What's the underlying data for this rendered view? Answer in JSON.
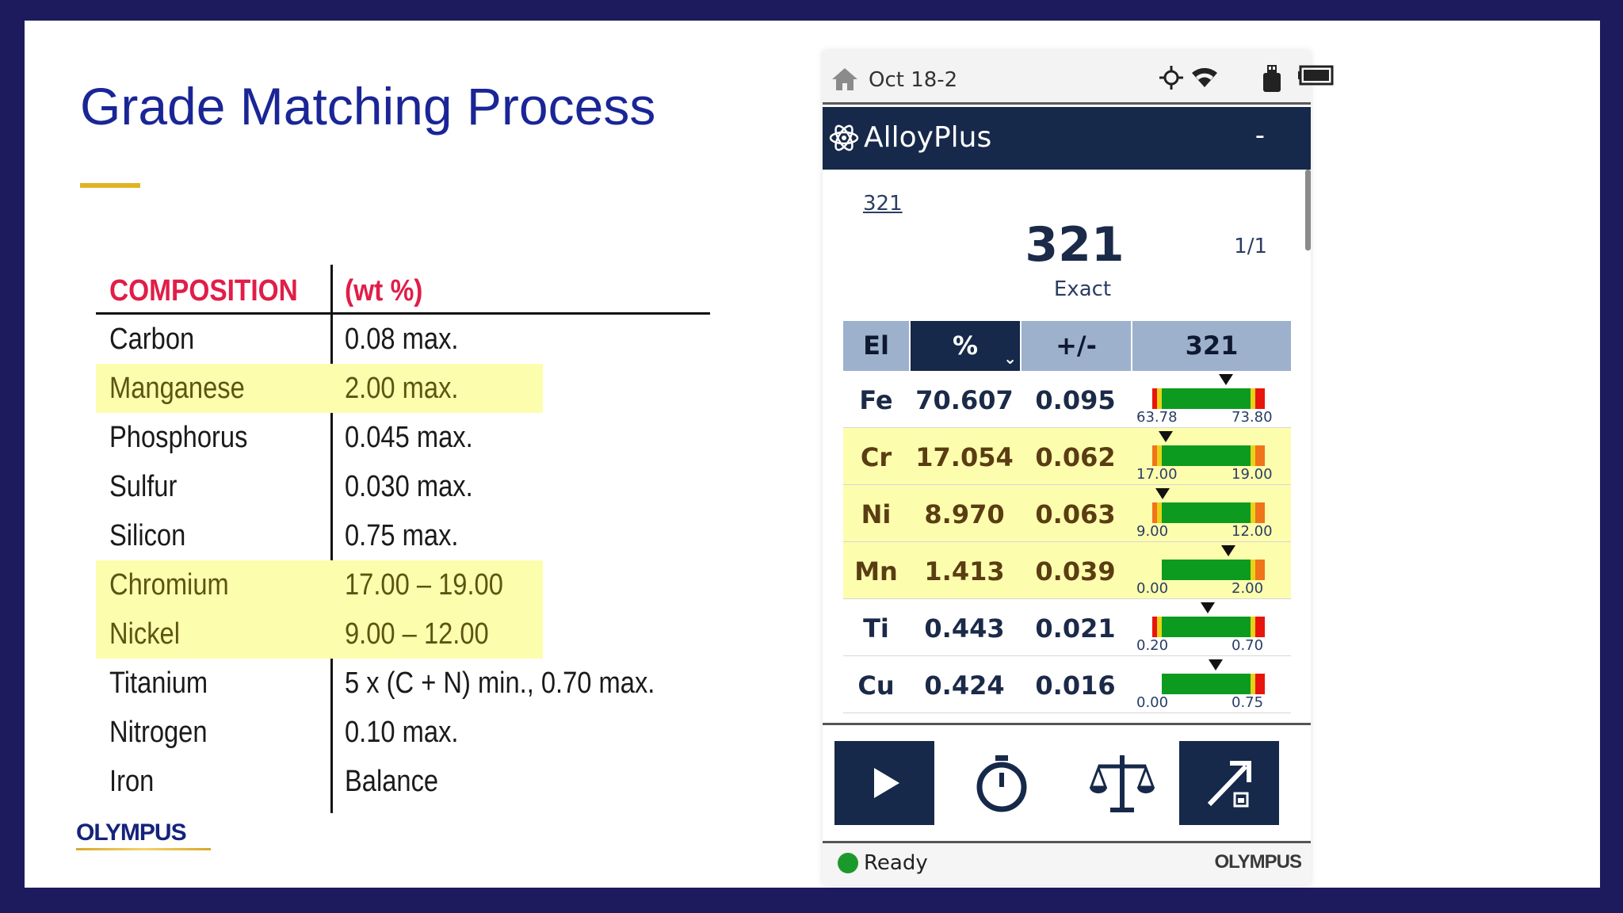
{
  "slide": {
    "title": "Grade Matching Process",
    "colors": {
      "title": "#1a2596",
      "accent_rule": "#e1b324",
      "header_red": "#e11d48",
      "highlight": "#fdfdae"
    },
    "composition_table": {
      "col_element_header": "COMPOSITION",
      "col_value_header": "(wt %)",
      "rows": [
        {
          "element": "Carbon",
          "value": "0.08 max."
        },
        {
          "element": "Manganese",
          "value": "2.00 max."
        },
        {
          "element": "Phosphorus",
          "value": "0.045 max."
        },
        {
          "element": "Sulfur",
          "value": "0.030 max."
        },
        {
          "element": "Silicon",
          "value": "0.75 max."
        },
        {
          "element": "Chromium",
          "value": "17.00 – 19.00"
        },
        {
          "element": "Nickel",
          "value": "9.00 – 12.00"
        },
        {
          "element": "Titanium",
          "value": "5 x (C + N) min., 0.70 max."
        },
        {
          "element": "Nitrogen",
          "value": "0.10 max."
        },
        {
          "element": "Iron",
          "value": "Balance"
        }
      ],
      "highlighted_rows": [
        "Manganese",
        "Chromium",
        "Nickel"
      ]
    },
    "logo_text": "OLYMPUS"
  },
  "device": {
    "status_bar": {
      "date": "Oct 18-2",
      "icons": [
        "home-icon",
        "gps-icon",
        "wifi-icon",
        "usb-icon",
        "battery-icon"
      ]
    },
    "app_bar": {
      "app_name": "AlloyPlus",
      "menu_label": "-",
      "icon": "atom-icon"
    },
    "result": {
      "grade_link": "321",
      "grade": "321",
      "match_count": "1/1",
      "match_quality": "Exact"
    },
    "table": {
      "headers": {
        "element": "El",
        "percent": "%",
        "error": "+/-",
        "grade": "321"
      },
      "sort_icon": "chevron-down-icon",
      "rows": [
        {
          "el": "Fe",
          "pct": "70.607",
          "err": "0.095",
          "min": "63.78",
          "max": "73.80",
          "value": 70.607,
          "lo": 63.78,
          "hi": 73.8,
          "has_low_red": true,
          "highlighted": false
        },
        {
          "el": "Cr",
          "pct": "17.054",
          "err": "0.062",
          "min": "17.00",
          "max": "19.00",
          "value": 17.054,
          "lo": 17.0,
          "hi": 19.0,
          "has_low_red": true,
          "highlighted": true
        },
        {
          "el": "Ni",
          "pct": "8.970",
          "err": "0.063",
          "min": "9.00",
          "max": "12.00",
          "value": 8.97,
          "lo": 9.0,
          "hi": 12.0,
          "has_low_red": true,
          "highlighted": true
        },
        {
          "el": "Mn",
          "pct": "1.413",
          "err": "0.039",
          "min": "0.00",
          "max": "2.00",
          "value": 1.413,
          "lo": 0.0,
          "hi": 2.0,
          "has_low_red": false,
          "highlighted": true
        },
        {
          "el": "Ti",
          "pct": "0.443",
          "err": "0.021",
          "min": "0.20",
          "max": "0.70",
          "value": 0.443,
          "lo": 0.2,
          "hi": 0.7,
          "has_low_red": true,
          "highlighted": false
        },
        {
          "el": "Cu",
          "pct": "0.424",
          "err": "0.016",
          "min": "0.00",
          "max": "0.75",
          "value": 0.424,
          "lo": 0.0,
          "hi": 0.75,
          "has_low_red": false,
          "highlighted": false
        }
      ],
      "gauge_colors": {
        "green": "#0c9b1f",
        "yellow": "#e8d21a",
        "red": "#e8150d",
        "orange": "#f0741a"
      }
    },
    "toolbar": {
      "buttons": [
        "play-icon",
        "stopwatch-icon",
        "scale-icon",
        "export-icon"
      ]
    },
    "footer": {
      "status": "Ready",
      "brand": "OLYMPUS"
    }
  }
}
